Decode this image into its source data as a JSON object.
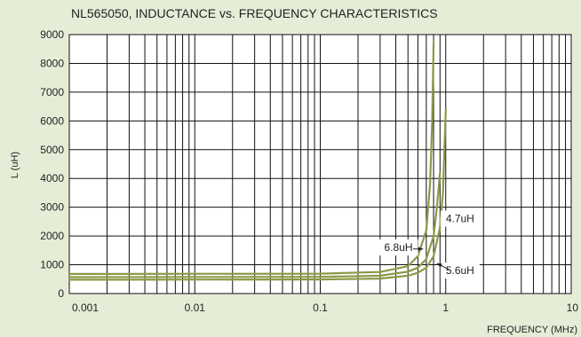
{
  "chart_data": {
    "type": "line",
    "title": "NL565050, INDUCTANCE vs. FREQUENCY CHARACTERISTICS",
    "xlabel": "FREQUENCY (MHz)",
    "ylabel": "L (uH)",
    "x_scale": "log",
    "xlim": [
      0.001,
      10
    ],
    "ylim": [
      0,
      9000
    ],
    "x_ticks": [
      "0.001",
      "0.01",
      "0.1",
      "1",
      "10"
    ],
    "y_ticks": [
      "0",
      "1000",
      "2000",
      "3000",
      "4000",
      "5000",
      "6000",
      "7000",
      "8000",
      "9000"
    ],
    "grid": true,
    "series": [
      {
        "name": "6.8uH",
        "x": [
          0.001,
          0.1,
          0.3,
          0.5,
          0.6,
          0.7,
          0.75,
          0.78,
          0.8
        ],
        "y": [
          680,
          690,
          750,
          950,
          1300,
          2200,
          3800,
          6000,
          8750
        ]
      },
      {
        "name": "5.6uH",
        "x": [
          0.001,
          0.1,
          0.3,
          0.5,
          0.6,
          0.7,
          0.8,
          0.85,
          0.9
        ],
        "y": [
          570,
          580,
          620,
          760,
          900,
          1200,
          2000,
          3000,
          4200
        ]
      },
      {
        "name": "4.7uH",
        "x": [
          0.001,
          0.1,
          0.3,
          0.5,
          0.6,
          0.7,
          0.8,
          0.9,
          0.95,
          1.0
        ],
        "y": [
          480,
          490,
          520,
          620,
          720,
          900,
          1300,
          2300,
          3500,
          6400
        ]
      }
    ],
    "annotations": [
      "6.8uH",
      "4.7uH",
      "5.6uH"
    ]
  },
  "colors": {
    "background": "#e6edd7",
    "plot_background": "#ffffff",
    "grid": "#111111",
    "curve": "#8b9a46"
  }
}
